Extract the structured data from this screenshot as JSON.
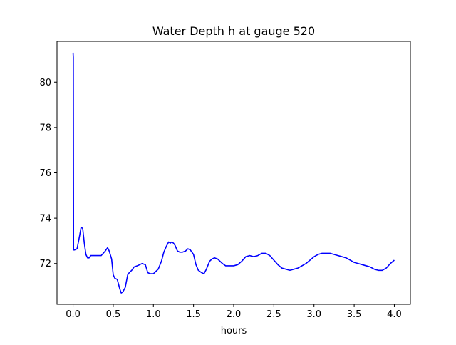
{
  "chart_data": {
    "type": "line",
    "title": "Water Depth h at gauge 520",
    "xlabel": "hours",
    "ylabel": "",
    "xlim": [
      -0.2,
      4.2
    ],
    "ylim": [
      70.2,
      81.8
    ],
    "xticks": [
      0.0,
      0.5,
      1.0,
      1.5,
      2.0,
      2.5,
      3.0,
      3.5,
      4.0
    ],
    "xtick_labels": [
      "0.0",
      "0.5",
      "1.0",
      "1.5",
      "2.0",
      "2.5",
      "3.0",
      "3.5",
      "4.0"
    ],
    "yticks": [
      72,
      74,
      76,
      78,
      80
    ],
    "ytick_labels": [
      "72",
      "74",
      "76",
      "78",
      "80"
    ],
    "grid": false,
    "colors": {
      "line": "#0000ff",
      "axes": "#000000",
      "background": "#ffffff"
    },
    "series": [
      {
        "x": [
          0.0,
          0.003,
          0.006,
          0.01,
          0.02,
          0.05,
          0.08,
          0.1,
          0.12,
          0.14,
          0.16,
          0.18,
          0.2,
          0.22,
          0.25,
          0.3,
          0.35,
          0.4,
          0.43,
          0.45,
          0.48,
          0.5,
          0.52,
          0.55,
          0.58,
          0.6,
          0.62,
          0.65,
          0.68,
          0.7,
          0.73,
          0.76,
          0.8,
          0.83,
          0.86,
          0.9,
          0.93,
          0.96,
          1.0,
          1.03,
          1.06,
          1.1,
          1.13,
          1.16,
          1.19,
          1.21,
          1.23,
          1.25,
          1.27,
          1.3,
          1.33,
          1.36,
          1.4,
          1.43,
          1.46,
          1.5,
          1.53,
          1.56,
          1.6,
          1.63,
          1.66,
          1.7,
          1.73,
          1.76,
          1.8,
          1.83,
          1.86,
          1.9,
          1.95,
          2.0,
          2.05,
          2.1,
          2.15,
          2.2,
          2.25,
          2.3,
          2.35,
          2.4,
          2.45,
          2.5,
          2.55,
          2.6,
          2.65,
          2.7,
          2.75,
          2.8,
          2.85,
          2.9,
          2.95,
          3.0,
          3.05,
          3.1,
          3.15,
          3.2,
          3.25,
          3.3,
          3.35,
          3.4,
          3.45,
          3.5,
          3.55,
          3.6,
          3.65,
          3.7,
          3.75,
          3.8,
          3.85,
          3.9,
          3.95,
          4.0
        ],
        "y": [
          81.3,
          81.1,
          72.6,
          72.6,
          72.6,
          72.65,
          73.2,
          73.6,
          73.55,
          72.9,
          72.4,
          72.25,
          72.25,
          72.35,
          72.35,
          72.35,
          72.35,
          72.55,
          72.7,
          72.55,
          72.2,
          71.5,
          71.35,
          71.3,
          70.9,
          70.7,
          70.75,
          70.95,
          71.5,
          71.6,
          71.7,
          71.85,
          71.9,
          71.95,
          72.0,
          71.95,
          71.6,
          71.55,
          71.55,
          71.65,
          71.75,
          72.1,
          72.5,
          72.75,
          72.95,
          72.9,
          72.95,
          72.9,
          72.8,
          72.55,
          72.5,
          72.5,
          72.55,
          72.65,
          72.6,
          72.4,
          71.95,
          71.7,
          71.6,
          71.55,
          71.75,
          72.1,
          72.2,
          72.25,
          72.2,
          72.1,
          72.0,
          71.9,
          71.9,
          71.9,
          71.95,
          72.1,
          72.3,
          72.35,
          72.3,
          72.35,
          72.45,
          72.45,
          72.35,
          72.15,
          71.95,
          71.8,
          71.75,
          71.7,
          71.75,
          71.8,
          71.9,
          72.0,
          72.15,
          72.3,
          72.4,
          72.45,
          72.45,
          72.45,
          72.4,
          72.35,
          72.3,
          72.25,
          72.15,
          72.05,
          72.0,
          71.95,
          71.9,
          71.85,
          71.75,
          71.7,
          71.7,
          71.8,
          72.0,
          72.15
        ]
      }
    ]
  }
}
